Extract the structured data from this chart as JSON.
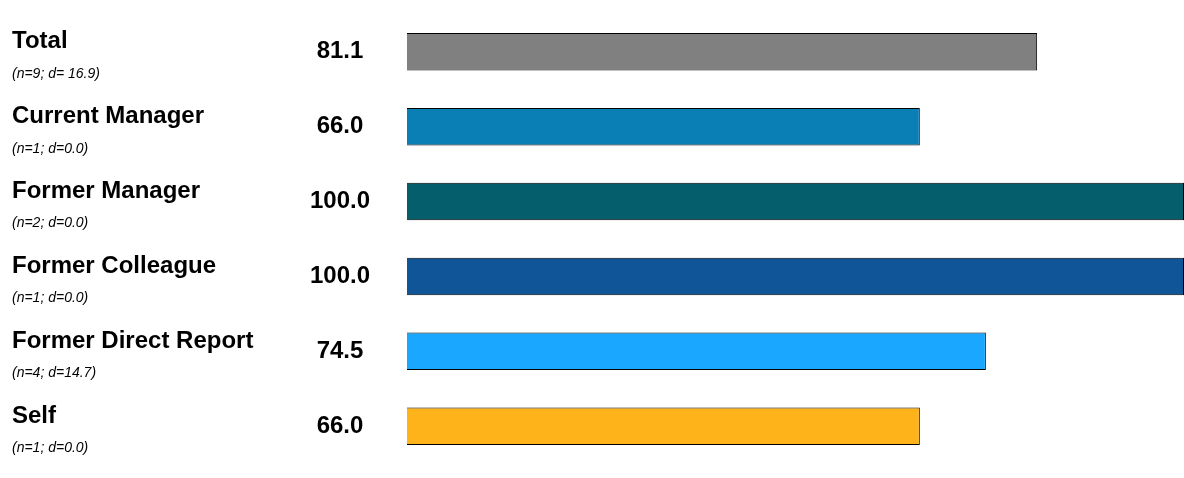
{
  "chart_data": {
    "type": "bar",
    "orientation": "horizontal",
    "categories": [
      "Total",
      "Current Manager",
      "Former Manager",
      "Former Colleague",
      "Former Direct Report",
      "Self"
    ],
    "values": [
      81.1,
      66.0,
      100.0,
      100.0,
      74.5,
      66.0
    ],
    "value_labels": [
      "81.1",
      "66.0",
      "100.0",
      "100.0",
      "74.5",
      "66.0"
    ],
    "colors": [
      "#808080",
      "#0a7fb5",
      "#055e6b",
      "#0f5597",
      "#1aa7ff",
      "#ffb31a"
    ],
    "xlim": [
      0,
      100
    ],
    "tick_labels": "y",
    "legend": false,
    "annotations": [
      "(n=9; d= 16.9)",
      "(n=1; d=0.0)",
      "(n=2; d=0.0)",
      "(n=1; d=0.0)",
      "(n=4; d=14.7)",
      "(n=1; d=0.0)"
    ]
  }
}
